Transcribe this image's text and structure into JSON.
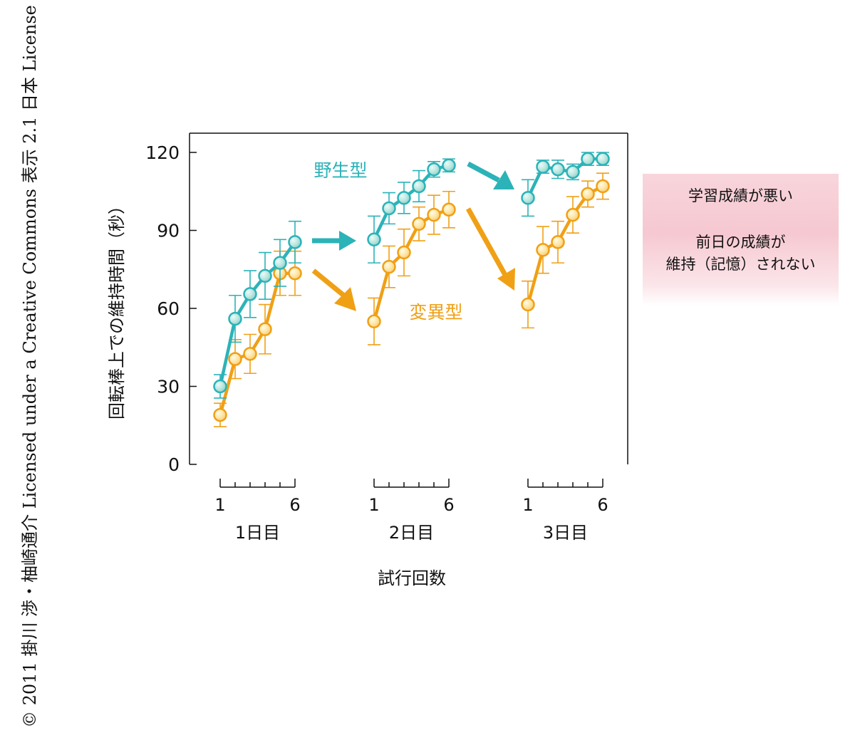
{
  "copyright": "© 2011 掛川 渉・柚崎通介 Licensed under a Creative Commons 表示 2.1 日本 License",
  "chart_data": {
    "type": "line",
    "ylabel": "回転棒上での維持時間（秒）",
    "xlabel": "試行回数",
    "ylim": [
      0,
      120
    ],
    "yticks": [
      "0",
      "30",
      "60",
      "90",
      "120"
    ],
    "trial_tick_labels": [
      "1",
      "6"
    ],
    "groups": [
      {
        "label": "1日目"
      },
      {
        "label": "2日目"
      },
      {
        "label": "3日目"
      }
    ],
    "series": [
      {
        "name": "野生型",
        "color": "#2bb3b8",
        "values": [
          [
            30,
            56,
            65.5,
            72.5,
            77.5,
            85.5
          ],
          [
            86.5,
            98.5,
            102.5,
            107,
            113.5,
            115
          ],
          [
            102.5,
            114.5,
            113.5,
            112.5,
            117.5,
            117.5
          ]
        ],
        "errors": [
          [
            4.5,
            9,
            9,
            9,
            9,
            8
          ],
          [
            9,
            6,
            6,
            6,
            3,
            2.5
          ],
          [
            7,
            2.5,
            3.5,
            3,
            2.5,
            2.5
          ]
        ]
      },
      {
        "name": "変異型",
        "color": "#f0a015",
        "values": [
          [
            19,
            40.5,
            42.5,
            52,
            73.5,
            73.5
          ],
          [
            55,
            76,
            81.5,
            92.5,
            96,
            98
          ],
          [
            61.5,
            82.5,
            85.5,
            96,
            104,
            107
          ]
        ],
        "errors": [
          [
            4.5,
            7.5,
            7.5,
            9.5,
            8.5,
            8.5
          ],
          [
            9,
            8,
            9,
            6.5,
            7.5,
            7
          ],
          [
            9,
            9,
            8,
            7,
            5,
            5
          ]
        ]
      }
    ]
  },
  "callout": {
    "line1": "学習成績が悪い",
    "line2": "前日の成績が",
    "line3": "維持（記憶）されない"
  }
}
